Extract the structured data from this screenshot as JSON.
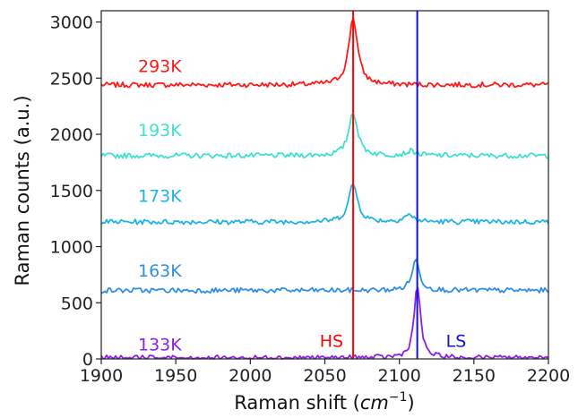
{
  "chart_data": {
    "type": "line",
    "xlabel": "Raman shift (cm⁻¹)",
    "xlabel_parts": {
      "prefix": "Raman shift (",
      "unit": "cm",
      "exponent": "−1",
      "suffix": ")"
    },
    "ylabel": "Raman counts (a.u.)",
    "xlim": [
      1900,
      2200
    ],
    "ylim": [
      0,
      3100
    ],
    "x_ticks": [
      1900,
      1950,
      2000,
      2050,
      2100,
      2150,
      2200
    ],
    "y_ticks": [
      0,
      500,
      1000,
      1500,
      2000,
      2500,
      3000
    ],
    "grid": false,
    "legend": "none",
    "series": [
      {
        "name": "293K",
        "color": "#ff1a1a",
        "baseline": 2440,
        "peaks": [
          {
            "x": 2069,
            "height": 600,
            "width": 3.5
          }
        ]
      },
      {
        "name": "193K",
        "color": "#40e0d0",
        "baseline": 1810,
        "peaks": [
          {
            "x": 2069,
            "height": 390,
            "width": 3.5
          },
          {
            "x": 2108,
            "height": 40,
            "width": 4
          }
        ]
      },
      {
        "name": "173K",
        "color": "#1eb4e6",
        "baseline": 1220,
        "peaks": [
          {
            "x": 2069,
            "height": 340,
            "width": 3.5
          },
          {
            "x": 2106,
            "height": 60,
            "width": 4
          }
        ]
      },
      {
        "name": "163K",
        "color": "#2f8fe6",
        "baseline": 610,
        "peaks": [
          {
            "x": 2111,
            "height": 270,
            "width": 3
          }
        ]
      },
      {
        "name": "133K",
        "color": "#8b1fe8",
        "baseline": 10,
        "peaks": [
          {
            "x": 2112,
            "height": 650,
            "width": 2.5
          }
        ]
      }
    ],
    "markers": [
      {
        "label": "HS",
        "x": 2069,
        "color": "#ff0000",
        "label_side": "left"
      },
      {
        "label": "LS",
        "x": 2112,
        "color": "#1010dd",
        "label_side": "right"
      }
    ]
  }
}
